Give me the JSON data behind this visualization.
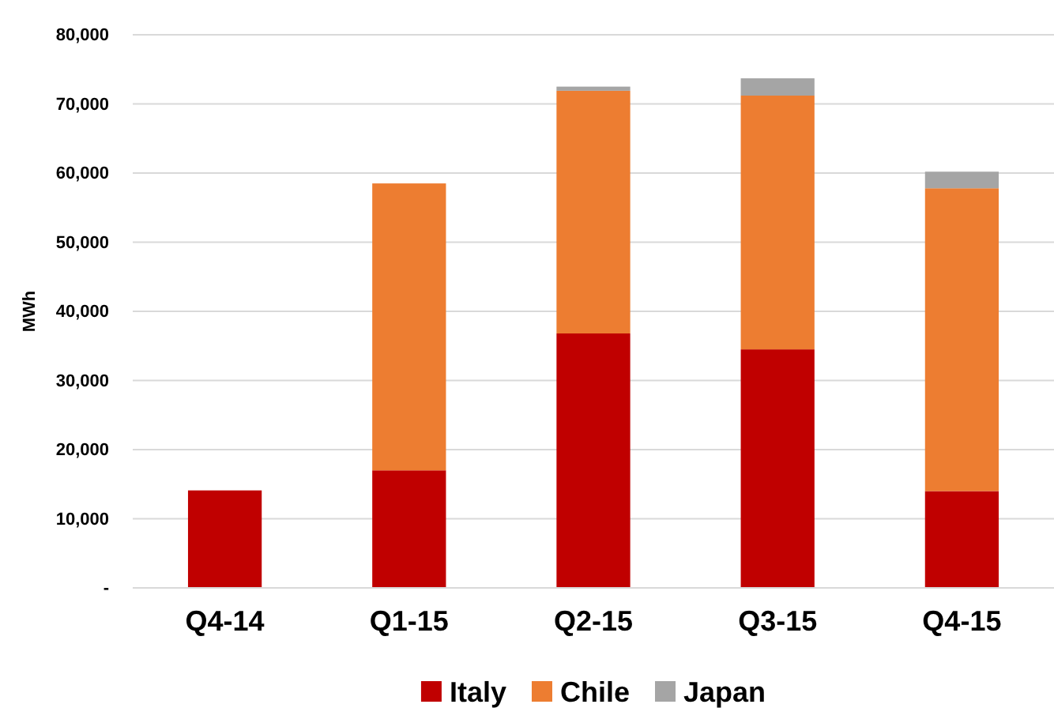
{
  "chart_data": {
    "type": "bar",
    "stacked": true,
    "ylabel": "MWh",
    "categories": [
      "Q4-14",
      "Q1-15",
      "Q2-15",
      "Q3-15",
      "Q4-15"
    ],
    "series": [
      {
        "name": "Italy",
        "color": "#c00000",
        "values": [
          14100,
          17000,
          36800,
          34500,
          14000
        ]
      },
      {
        "name": "Chile",
        "color": "#ed7d31",
        "values": [
          0,
          41500,
          35100,
          36700,
          43800
        ]
      },
      {
        "name": "Japan",
        "color": "#a5a5a5",
        "values": [
          0,
          0,
          600,
          2500,
          2400
        ]
      }
    ],
    "ylim": [
      0,
      80000
    ],
    "yticks": [
      {
        "value": 0,
        "label": "-"
      },
      {
        "value": 10000,
        "label": "10,000"
      },
      {
        "value": 20000,
        "label": "20,000"
      },
      {
        "value": 30000,
        "label": "30,000"
      },
      {
        "value": 40000,
        "label": "40,000"
      },
      {
        "value": 50000,
        "label": "50,000"
      },
      {
        "value": 60000,
        "label": "60,000"
      },
      {
        "value": 70000,
        "label": "70,000"
      },
      {
        "value": 80000,
        "label": "80,000"
      }
    ],
    "grid": "y",
    "legend": "bottom"
  }
}
